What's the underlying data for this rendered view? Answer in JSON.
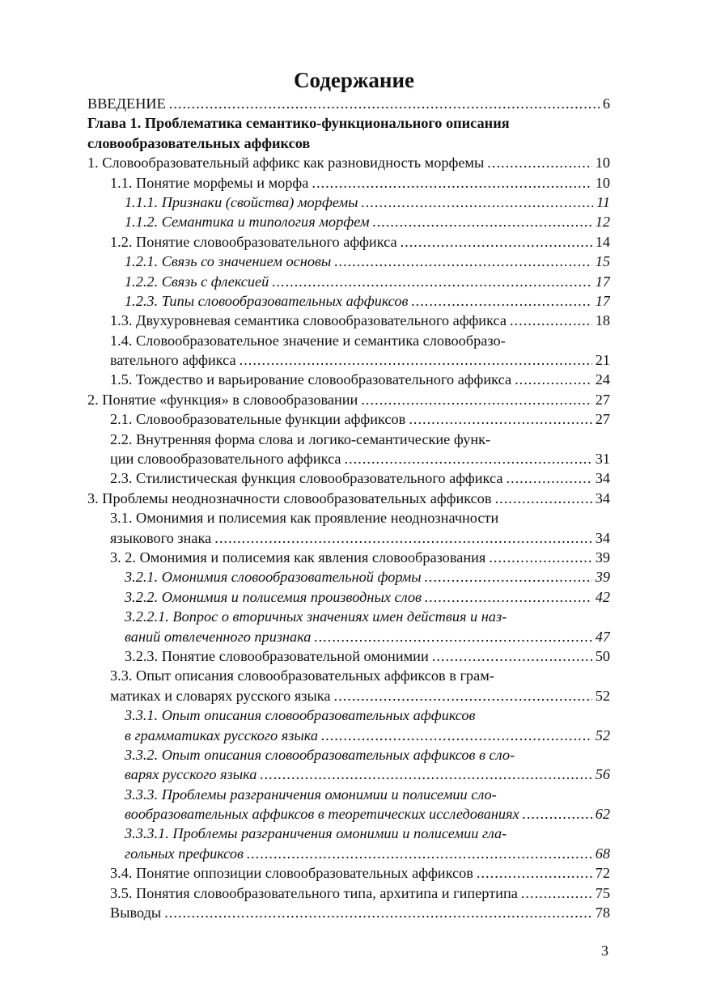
{
  "title": "Содержание",
  "entries": [
    {
      "level": 0,
      "style": "normal",
      "lines": [
        "ВВЕДЕНИЕ"
      ],
      "page": "6"
    },
    {
      "level": 0,
      "style": "bold",
      "lines": [
        "Глава 1. Проблематика семантико-функционального описания",
        "словообразовательных аффиксов"
      ],
      "page": ""
    },
    {
      "level": 0,
      "style": "normal",
      "lines": [
        "1. Словообразовательный аффикс как разновидность морфемы"
      ],
      "page": "10"
    },
    {
      "level": 1,
      "style": "normal",
      "lines": [
        "1.1. Понятие морфемы и морфа"
      ],
      "page": "10"
    },
    {
      "level": 2,
      "style": "italic",
      "lines": [
        "1.1.1. Признаки (свойства) морфемы"
      ],
      "page": "11"
    },
    {
      "level": 2,
      "style": "italic",
      "lines": [
        "1.1.2. Семантика и типология морфем"
      ],
      "page": "12"
    },
    {
      "level": 1,
      "style": "normal",
      "lines": [
        "1.2. Понятие словообразовательного аффикса"
      ],
      "page": "14"
    },
    {
      "level": 2,
      "style": "italic",
      "lines": [
        "1.2.1. Связь со значением основы"
      ],
      "page": "15"
    },
    {
      "level": 2,
      "style": "italic",
      "lines": [
        "1.2.2. Связь с флексией"
      ],
      "page": "17"
    },
    {
      "level": 2,
      "style": "italic",
      "lines": [
        "1.2.3. Типы словообразовательных аффиксов"
      ],
      "page": "17"
    },
    {
      "level": 1,
      "style": "normal",
      "lines": [
        "1.3. Двухуровневая семантика словообразовательного аффикса"
      ],
      "page": "18"
    },
    {
      "level": 1,
      "style": "normal",
      "lines": [
        "1.4. Словообразовательное значение и семантика словообразо-",
        "вательного аффикса"
      ],
      "page": "21"
    },
    {
      "level": 1,
      "style": "normal",
      "lines": [
        "1.5. Тождество и варьирование словообразовательного аффикса"
      ],
      "page": "24"
    },
    {
      "level": 0,
      "style": "normal",
      "lines": [
        "2. Понятие «функция» в словообразовании"
      ],
      "page": "27"
    },
    {
      "level": 1,
      "style": "normal",
      "lines": [
        "2.1. Словообразовательные функции аффиксов"
      ],
      "page": "27"
    },
    {
      "level": 1,
      "style": "normal",
      "lines": [
        "2.2. Внутренняя форма слова и логико-семантические функ-",
        "ции словообразовательного аффикса"
      ],
      "page": "31"
    },
    {
      "level": 1,
      "style": "normal",
      "lines": [
        "2.3. Стилистическая функция словообразовательного аффикса"
      ],
      "page": "34"
    },
    {
      "level": 0,
      "style": "normal",
      "lines": [
        "3. Проблемы неоднозначности словообразовательных аффиксов"
      ],
      "page": "34"
    },
    {
      "level": 1,
      "style": "normal",
      "lines": [
        "3.1. Омонимия и полисемия как проявление неоднозначности",
        "языкового знака"
      ],
      "page": "34"
    },
    {
      "level": 1,
      "style": "normal",
      "lines": [
        "3. 2. Омонимия и полисемия как явления словообразования"
      ],
      "page": "39"
    },
    {
      "level": 2,
      "style": "italic",
      "lines": [
        "3.2.1. Омонимия словообразовательной формы"
      ],
      "page": "39"
    },
    {
      "level": 2,
      "style": "italic",
      "lines": [
        "3.2.2. Омонимия и полисемия производных слов"
      ],
      "page": "42"
    },
    {
      "level": 2,
      "style": "italic",
      "lines": [
        "3.2.2.1. Вопрос о вторичных значениях имен действия и наз-",
        "ваний отвлеченного признака"
      ],
      "page": "47"
    },
    {
      "level": 2,
      "style": "normal",
      "lines": [
        "3.2.3. Понятие словообразовательной омонимии"
      ],
      "page": "50"
    },
    {
      "level": 1,
      "style": "normal",
      "lines": [
        "3.3. Опыт описания словообразовательных аффиксов в грам-",
        "матиках и словарях русского языка"
      ],
      "page": "52"
    },
    {
      "level": 2,
      "style": "italic",
      "lines": [
        "3.3.1.  Опыт описания словообразовательных аффиксов",
        "в грамматиках русского языка"
      ],
      "page": "52"
    },
    {
      "level": 2,
      "style": "italic",
      "lines": [
        "3.3.2. Опыт описания словообразовательных аффиксов в сло-",
        "варях русского языка"
      ],
      "page": "56"
    },
    {
      "level": 2,
      "style": "italic",
      "lines": [
        "3.3.3. Проблемы разграничения омонимии и полисемии сло-",
        "вообразовательных аффиксов в теоретических исследованиях"
      ],
      "page": "62"
    },
    {
      "level": 2,
      "style": "italic",
      "lines": [
        "3.3.3.1. Проблемы разграничения омонимии и полисемии гла-",
        "гольных префиксов"
      ],
      "page": "68"
    },
    {
      "level": 1,
      "style": "normal",
      "lines": [
        "3.4. Понятие оппозиции словообразовательных аффиксов"
      ],
      "page": "72"
    },
    {
      "level": 1,
      "style": "normal",
      "lines": [
        "3.5. Понятия словообразовательного типа, архитипа и гипертипа"
      ],
      "page": "75"
    },
    {
      "level": 1,
      "style": "normal",
      "lines": [
        "Выводы"
      ],
      "page": "78"
    }
  ],
  "page_number": "3"
}
